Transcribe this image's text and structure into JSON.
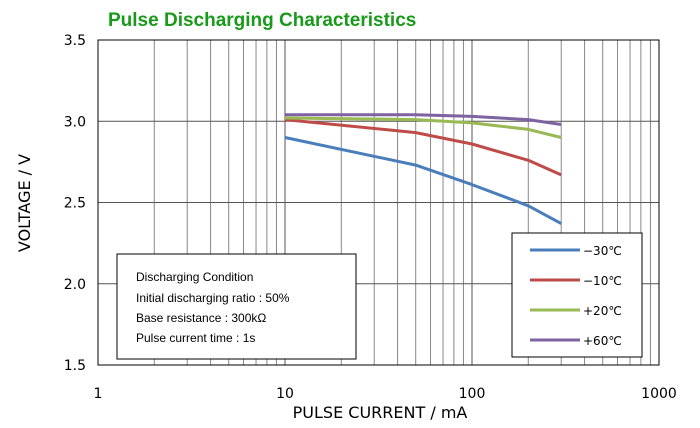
{
  "chart_data": {
    "type": "line",
    "title": "Pulse Discharging Characteristics",
    "xlabel": "PULSE CURRENT / mA",
    "ylabel": "VOLTAGE / V",
    "x_scale": "log",
    "xlim": [
      1,
      1000
    ],
    "ylim": [
      1.5,
      3.5
    ],
    "x_ticks": [
      "1",
      "10",
      "100",
      "1000"
    ],
    "y_ticks": [
      "1.5",
      "2.0",
      "2.5",
      "3.0",
      "3.5"
    ],
    "y_tick_values": [
      1.5,
      2.0,
      2.5,
      3.0,
      3.5
    ],
    "grid": true,
    "legend_position": "bottom-right",
    "x": [
      10,
      50,
      100,
      200,
      300
    ],
    "series": [
      {
        "name": "−30℃",
        "color": "#4a7ebb",
        "values": [
          2.9,
          2.73,
          2.61,
          2.48,
          2.37
        ]
      },
      {
        "name": "−10℃",
        "color": "#be4b48",
        "values": [
          3.01,
          2.93,
          2.86,
          2.76,
          2.67
        ]
      },
      {
        "name": "+20℃",
        "color": "#98b954",
        "values": [
          3.02,
          3.01,
          2.99,
          2.95,
          2.9
        ]
      },
      {
        "name": "+60℃",
        "color": "#7e62a1",
        "values": [
          3.04,
          3.04,
          3.03,
          3.01,
          2.98
        ]
      }
    ],
    "annotation": {
      "lines": [
        "Discharging Condition",
        "Initial discharging ratio : 50%",
        "Base resistance : 300kΩ",
        "Pulse current time : 1s"
      ]
    }
  }
}
